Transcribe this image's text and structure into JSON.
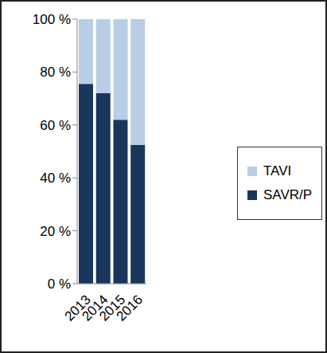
{
  "chart_data": {
    "type": "bar",
    "stacked": true,
    "categories": [
      "2013",
      "2014",
      "2015",
      "2016"
    ],
    "series": [
      {
        "name": "SAVR/P",
        "color": "#1b365d",
        "values": [
          75.5,
          72,
          62,
          52.5
        ]
      },
      {
        "name": "TAVI",
        "color": "#b9cde5",
        "values": [
          24.5,
          28,
          38,
          47.5
        ]
      }
    ],
    "ylim": [
      0,
      100
    ],
    "yticks": [
      {
        "value": 0,
        "label": "0 %"
      },
      {
        "value": 20,
        "label": "20 %"
      },
      {
        "value": 40,
        "label": "40 %"
      },
      {
        "value": 60,
        "label": "60 %"
      },
      {
        "value": 80,
        "label": "80 %"
      },
      {
        "value": 100,
        "label": "100 %"
      }
    ],
    "legend": "right",
    "grid": false
  }
}
